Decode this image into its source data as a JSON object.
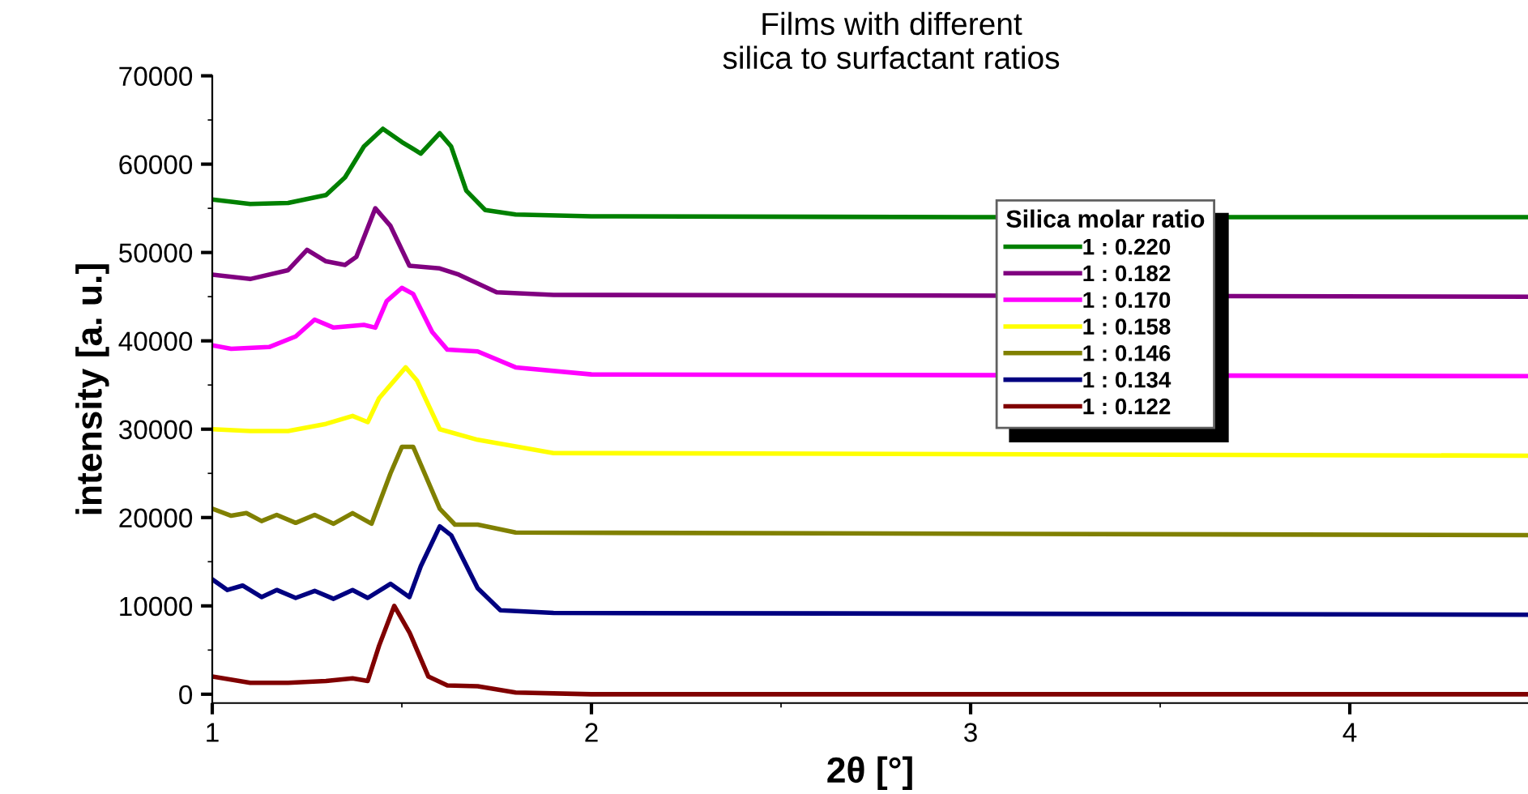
{
  "chart_data": {
    "type": "line",
    "title": "Films with different\nsilica to surfactant ratios",
    "xlabel": "2θ [°]",
    "ylabel": "intensity [a. u.]",
    "legend_title": "Silica molar ratio",
    "legend": "right",
    "grid": false,
    "marker": "none",
    "line_style": "solid",
    "xlim": [
      1,
      4.47
    ],
    "xticks": [
      1,
      2,
      3,
      4
    ],
    "ylim": [
      -1000,
      70000
    ],
    "yticks": [
      0,
      10000,
      20000,
      30000,
      40000,
      50000,
      60000,
      70000
    ],
    "series": [
      {
        "name": "1 : 0.220",
        "color": "#008000",
        "x": [
          1.0,
          1.1,
          1.2,
          1.3,
          1.35,
          1.4,
          1.45,
          1.5,
          1.55,
          1.6,
          1.63,
          1.67,
          1.72,
          1.8,
          2.0,
          3.0,
          4.47
        ],
        "values": [
          56000,
          55500,
          55600,
          56500,
          58500,
          62000,
          64000,
          62500,
          61200,
          63500,
          62000,
          57000,
          54800,
          54300,
          54100,
          54000,
          54000
        ]
      },
      {
        "name": "1 : 0.182",
        "color": "#800080",
        "x": [
          1.0,
          1.1,
          1.2,
          1.25,
          1.3,
          1.35,
          1.38,
          1.43,
          1.47,
          1.52,
          1.6,
          1.65,
          1.75,
          1.9,
          4.47
        ],
        "values": [
          47500,
          47000,
          48000,
          50300,
          49000,
          48600,
          49500,
          55000,
          53000,
          48500,
          48200,
          47500,
          45500,
          45200,
          45000
        ]
      },
      {
        "name": "1 : 0.170",
        "color": "#ff00ff",
        "x": [
          1.0,
          1.05,
          1.15,
          1.22,
          1.27,
          1.32,
          1.4,
          1.43,
          1.46,
          1.5,
          1.53,
          1.58,
          1.62,
          1.7,
          1.8,
          2.0,
          4.47
        ],
        "values": [
          39500,
          39100,
          39300,
          40500,
          42400,
          41500,
          41800,
          41500,
          44500,
          46000,
          45300,
          41000,
          39000,
          38800,
          37000,
          36200,
          36000
        ]
      },
      {
        "name": "1 : 0.158",
        "color": "#ffff00",
        "x": [
          1.0,
          1.1,
          1.2,
          1.3,
          1.37,
          1.41,
          1.44,
          1.51,
          1.54,
          1.6,
          1.7,
          1.9,
          4.47
        ],
        "values": [
          30000,
          29800,
          29800,
          30600,
          31500,
          30800,
          33500,
          37000,
          35500,
          30000,
          28800,
          27300,
          27000
        ]
      },
      {
        "name": "1 : 0.146",
        "color": "#808000",
        "x": [
          1.0,
          1.05,
          1.09,
          1.13,
          1.17,
          1.22,
          1.27,
          1.32,
          1.37,
          1.42,
          1.47,
          1.5,
          1.53,
          1.6,
          1.64,
          1.7,
          1.8,
          4.47
        ],
        "values": [
          21000,
          20200,
          20500,
          19600,
          20300,
          19400,
          20300,
          19300,
          20500,
          19300,
          25000,
          28000,
          28000,
          21000,
          19200,
          19200,
          18300,
          18000
        ]
      },
      {
        "name": "1 : 0.134",
        "color": "#000080",
        "x": [
          1.0,
          1.04,
          1.08,
          1.13,
          1.17,
          1.22,
          1.27,
          1.32,
          1.37,
          1.41,
          1.47,
          1.52,
          1.55,
          1.6,
          1.63,
          1.7,
          1.76,
          1.9,
          4.47
        ],
        "values": [
          13000,
          11800,
          12300,
          11000,
          11800,
          10900,
          11700,
          10800,
          11800,
          10900,
          12500,
          11000,
          14500,
          19000,
          18000,
          12000,
          9500,
          9200,
          9000
        ]
      },
      {
        "name": "1 : 0.122",
        "color": "#800000",
        "x": [
          1.0,
          1.1,
          1.2,
          1.3,
          1.37,
          1.41,
          1.44,
          1.48,
          1.52,
          1.57,
          1.62,
          1.7,
          1.8,
          2.0,
          4.47
        ],
        "values": [
          2000,
          1300,
          1300,
          1500,
          1800,
          1500,
          5500,
          10000,
          7000,
          2000,
          1000,
          900,
          200,
          0,
          0
        ]
      }
    ]
  }
}
